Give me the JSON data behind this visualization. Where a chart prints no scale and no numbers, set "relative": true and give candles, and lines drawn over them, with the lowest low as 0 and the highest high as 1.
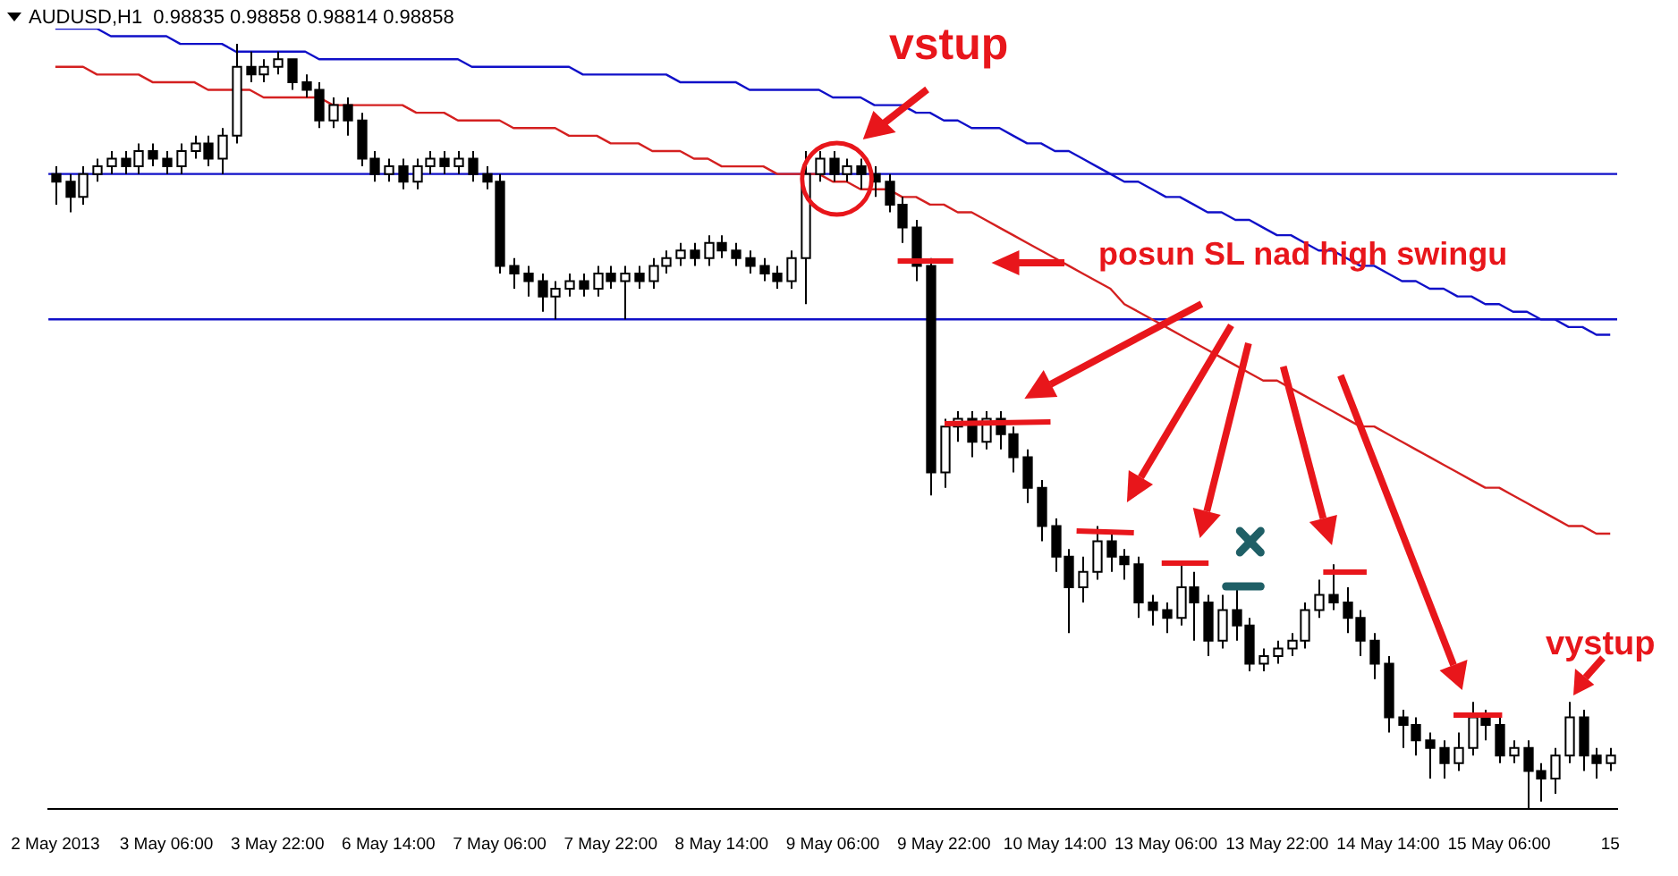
{
  "chart_data": {
    "type": "candlestick",
    "relative": true,
    "tick_labels": "x",
    "title": "AUDUSD,H1  0.98835 0.98858 0.98814 0.98858",
    "categories": [
      "2 May 2013",
      null,
      null,
      null,
      null,
      null,
      null,
      null,
      "3 May 06:00",
      null,
      null,
      null,
      null,
      null,
      null,
      null,
      "3 May 22:00",
      null,
      null,
      null,
      null,
      null,
      null,
      null,
      "6 May 14:00",
      null,
      null,
      null,
      null,
      null,
      null,
      null,
      "7 May 06:00",
      null,
      null,
      null,
      null,
      null,
      null,
      null,
      "7 May 22:00",
      null,
      null,
      null,
      null,
      null,
      null,
      null,
      "8 May 14:00",
      null,
      null,
      null,
      null,
      null,
      null,
      null,
      "9 May 06:00",
      null,
      null,
      null,
      null,
      null,
      null,
      null,
      "9 May 22:00",
      null,
      null,
      null,
      null,
      null,
      null,
      null,
      "10 May 14:00",
      null,
      null,
      null,
      null,
      null,
      null,
      null,
      "13 May 06:00",
      null,
      null,
      null,
      null,
      null,
      null,
      null,
      "13 May 22:00",
      null,
      null,
      null,
      null,
      null,
      null,
      null,
      "14 May 14:00",
      null,
      null,
      null,
      null,
      null,
      null,
      null,
      "15 May 06:00",
      null,
      null,
      null,
      null,
      null,
      null,
      null,
      "15"
    ],
    "ohlc": [
      [
        0.83,
        0.84,
        0.79,
        0.82
      ],
      [
        0.82,
        0.83,
        0.78,
        0.8
      ],
      [
        0.8,
        0.84,
        0.79,
        0.83
      ],
      [
        0.83,
        0.85,
        0.82,
        0.84
      ],
      [
        0.84,
        0.86,
        0.83,
        0.85
      ],
      [
        0.85,
        0.86,
        0.83,
        0.84
      ],
      [
        0.84,
        0.87,
        0.83,
        0.86
      ],
      [
        0.86,
        0.87,
        0.84,
        0.85
      ],
      [
        0.85,
        0.86,
        0.83,
        0.84
      ],
      [
        0.84,
        0.87,
        0.83,
        0.86
      ],
      [
        0.86,
        0.88,
        0.85,
        0.87
      ],
      [
        0.87,
        0.88,
        0.84,
        0.85
      ],
      [
        0.85,
        0.89,
        0.83,
        0.88
      ],
      [
        0.88,
        1.0,
        0.87,
        0.97
      ],
      [
        0.97,
        0.99,
        0.95,
        0.96
      ],
      [
        0.96,
        0.98,
        0.95,
        0.97
      ],
      [
        0.97,
        0.99,
        0.96,
        0.98
      ],
      [
        0.98,
        0.98,
        0.94,
        0.95
      ],
      [
        0.95,
        0.96,
        0.93,
        0.94
      ],
      [
        0.94,
        0.95,
        0.89,
        0.9
      ],
      [
        0.9,
        0.93,
        0.89,
        0.92
      ],
      [
        0.92,
        0.93,
        0.88,
        0.9
      ],
      [
        0.9,
        0.91,
        0.84,
        0.85
      ],
      [
        0.85,
        0.86,
        0.82,
        0.83
      ],
      [
        0.83,
        0.85,
        0.82,
        0.84
      ],
      [
        0.84,
        0.85,
        0.81,
        0.82
      ],
      [
        0.82,
        0.85,
        0.81,
        0.84
      ],
      [
        0.84,
        0.86,
        0.83,
        0.85
      ],
      [
        0.85,
        0.86,
        0.83,
        0.84
      ],
      [
        0.84,
        0.86,
        0.83,
        0.85
      ],
      [
        0.85,
        0.86,
        0.82,
        0.83
      ],
      [
        0.83,
        0.84,
        0.81,
        0.82
      ],
      [
        0.82,
        0.83,
        0.7,
        0.71
      ],
      [
        0.71,
        0.72,
        0.68,
        0.7
      ],
      [
        0.7,
        0.71,
        0.67,
        0.69
      ],
      [
        0.69,
        0.7,
        0.65,
        0.67
      ],
      [
        0.67,
        0.69,
        0.64,
        0.68
      ],
      [
        0.68,
        0.7,
        0.67,
        0.69
      ],
      [
        0.69,
        0.7,
        0.67,
        0.68
      ],
      [
        0.68,
        0.71,
        0.67,
        0.7
      ],
      [
        0.7,
        0.71,
        0.68,
        0.69
      ],
      [
        0.69,
        0.71,
        0.64,
        0.7
      ],
      [
        0.7,
        0.71,
        0.68,
        0.69
      ],
      [
        0.69,
        0.72,
        0.68,
        0.71
      ],
      [
        0.71,
        0.73,
        0.7,
        0.72
      ],
      [
        0.72,
        0.74,
        0.71,
        0.73
      ],
      [
        0.73,
        0.74,
        0.71,
        0.72
      ],
      [
        0.72,
        0.75,
        0.71,
        0.74
      ],
      [
        0.74,
        0.75,
        0.72,
        0.73
      ],
      [
        0.73,
        0.74,
        0.71,
        0.72
      ],
      [
        0.72,
        0.73,
        0.7,
        0.71
      ],
      [
        0.71,
        0.72,
        0.69,
        0.7
      ],
      [
        0.7,
        0.71,
        0.68,
        0.69
      ],
      [
        0.69,
        0.73,
        0.68,
        0.72
      ],
      [
        0.72,
        0.86,
        0.66,
        0.83
      ],
      [
        0.83,
        0.86,
        0.82,
        0.85
      ],
      [
        0.85,
        0.86,
        0.82,
        0.83
      ],
      [
        0.83,
        0.85,
        0.82,
        0.84
      ],
      [
        0.84,
        0.85,
        0.81,
        0.83
      ],
      [
        0.83,
        0.84,
        0.8,
        0.82
      ],
      [
        0.82,
        0.83,
        0.78,
        0.79
      ],
      [
        0.79,
        0.8,
        0.74,
        0.76
      ],
      [
        0.76,
        0.77,
        0.69,
        0.71
      ],
      [
        0.71,
        0.72,
        0.41,
        0.44
      ],
      [
        0.44,
        0.51,
        0.42,
        0.5
      ],
      [
        0.5,
        0.52,
        0.48,
        0.51
      ],
      [
        0.51,
        0.52,
        0.46,
        0.48
      ],
      [
        0.48,
        0.52,
        0.47,
        0.51
      ],
      [
        0.51,
        0.52,
        0.47,
        0.49
      ],
      [
        0.49,
        0.5,
        0.44,
        0.46
      ],
      [
        0.46,
        0.47,
        0.4,
        0.42
      ],
      [
        0.42,
        0.43,
        0.35,
        0.37
      ],
      [
        0.37,
        0.38,
        0.31,
        0.33
      ],
      [
        0.33,
        0.34,
        0.23,
        0.29
      ],
      [
        0.29,
        0.33,
        0.27,
        0.31
      ],
      [
        0.31,
        0.37,
        0.3,
        0.35
      ],
      [
        0.35,
        0.36,
        0.31,
        0.33
      ],
      [
        0.33,
        0.34,
        0.3,
        0.32
      ],
      [
        0.32,
        0.33,
        0.25,
        0.27
      ],
      [
        0.27,
        0.28,
        0.24,
        0.26
      ],
      [
        0.26,
        0.27,
        0.23,
        0.25
      ],
      [
        0.25,
        0.32,
        0.24,
        0.29
      ],
      [
        0.29,
        0.31,
        0.22,
        0.27
      ],
      [
        0.27,
        0.28,
        0.2,
        0.22
      ],
      [
        0.22,
        0.28,
        0.21,
        0.26
      ],
      [
        0.26,
        0.29,
        0.22,
        0.24
      ],
      [
        0.24,
        0.25,
        0.18,
        0.19
      ],
      [
        0.19,
        0.21,
        0.18,
        0.2
      ],
      [
        0.2,
        0.22,
        0.19,
        0.21
      ],
      [
        0.21,
        0.23,
        0.2,
        0.22
      ],
      [
        0.22,
        0.27,
        0.21,
        0.26
      ],
      [
        0.26,
        0.3,
        0.25,
        0.28
      ],
      [
        0.28,
        0.32,
        0.26,
        0.27
      ],
      [
        0.27,
        0.29,
        0.23,
        0.25
      ],
      [
        0.25,
        0.26,
        0.2,
        0.22
      ],
      [
        0.22,
        0.23,
        0.17,
        0.19
      ],
      [
        0.19,
        0.2,
        0.1,
        0.12
      ],
      [
        0.12,
        0.13,
        0.08,
        0.11
      ],
      [
        0.11,
        0.12,
        0.07,
        0.09
      ],
      [
        0.09,
        0.1,
        0.04,
        0.08
      ],
      [
        0.08,
        0.09,
        0.04,
        0.06
      ],
      [
        0.06,
        0.1,
        0.05,
        0.08
      ],
      [
        0.08,
        0.14,
        0.07,
        0.12
      ],
      [
        0.12,
        0.13,
        0.09,
        0.11
      ],
      [
        0.11,
        0.12,
        0.06,
        0.07
      ],
      [
        0.07,
        0.09,
        0.06,
        0.08
      ],
      [
        0.08,
        0.09,
        0.0,
        0.05
      ],
      [
        0.05,
        0.06,
        0.01,
        0.04
      ],
      [
        0.04,
        0.08,
        0.02,
        0.07
      ],
      [
        0.07,
        0.14,
        0.06,
        0.12
      ],
      [
        0.12,
        0.13,
        0.05,
        0.07
      ],
      [
        0.07,
        0.08,
        0.04,
        0.06
      ],
      [
        0.06,
        0.08,
        0.05,
        0.07
      ]
    ],
    "series": [
      {
        "type": "line",
        "color": "#1010c8",
        "values": [
          1.02,
          1.02,
          1.02,
          1.02,
          1.01,
          1.01,
          1.01,
          1.01,
          1.01,
          1.0,
          1.0,
          1.0,
          1.0,
          0.99,
          0.99,
          0.99,
          0.99,
          0.99,
          0.99,
          0.98,
          0.98,
          0.98,
          0.98,
          0.98,
          0.98,
          0.98,
          0.98,
          0.98,
          0.98,
          0.98,
          0.97,
          0.97,
          0.97,
          0.97,
          0.97,
          0.97,
          0.97,
          0.97,
          0.96,
          0.96,
          0.96,
          0.96,
          0.96,
          0.96,
          0.96,
          0.95,
          0.95,
          0.95,
          0.95,
          0.95,
          0.94,
          0.94,
          0.94,
          0.94,
          0.94,
          0.94,
          0.93,
          0.93,
          0.93,
          0.92,
          0.92,
          0.92,
          0.91,
          0.91,
          0.9,
          0.9,
          0.89,
          0.89,
          0.89,
          0.88,
          0.87,
          0.87,
          0.86,
          0.86,
          0.85,
          0.84,
          0.83,
          0.82,
          0.82,
          0.81,
          0.8,
          0.8,
          0.79,
          0.78,
          0.78,
          0.77,
          0.77,
          0.76,
          0.75,
          0.75,
          0.74,
          0.73,
          0.73,
          0.72,
          0.71,
          0.71,
          0.7,
          0.69,
          0.69,
          0.68,
          0.68,
          0.67,
          0.67,
          0.66,
          0.66,
          0.65,
          0.65,
          0.64,
          0.64,
          0.63,
          0.63,
          0.62,
          0.62
        ]
      },
      {
        "type": "line",
        "color": "#d42020",
        "values": [
          0.97,
          0.97,
          0.97,
          0.96,
          0.96,
          0.96,
          0.96,
          0.95,
          0.95,
          0.95,
          0.95,
          0.94,
          0.94,
          0.94,
          0.94,
          0.93,
          0.93,
          0.93,
          0.93,
          0.93,
          0.92,
          0.92,
          0.92,
          0.92,
          0.92,
          0.92,
          0.91,
          0.91,
          0.91,
          0.9,
          0.9,
          0.9,
          0.9,
          0.89,
          0.89,
          0.89,
          0.89,
          0.88,
          0.88,
          0.88,
          0.87,
          0.87,
          0.87,
          0.86,
          0.86,
          0.86,
          0.85,
          0.85,
          0.84,
          0.84,
          0.84,
          0.84,
          0.83,
          0.83,
          0.83,
          0.83,
          0.82,
          0.82,
          0.81,
          0.81,
          0.81,
          0.8,
          0.8,
          0.79,
          0.79,
          0.78,
          0.78,
          0.77,
          0.76,
          0.75,
          0.74,
          0.73,
          0.72,
          0.71,
          0.7,
          0.69,
          0.68,
          0.66,
          0.65,
          0.64,
          0.63,
          0.62,
          0.61,
          0.6,
          0.59,
          0.58,
          0.57,
          0.56,
          0.56,
          0.55,
          0.54,
          0.53,
          0.52,
          0.51,
          0.5,
          0.5,
          0.49,
          0.48,
          0.47,
          0.46,
          0.45,
          0.44,
          0.43,
          0.42,
          0.42,
          0.41,
          0.4,
          0.39,
          0.38,
          0.37,
          0.37,
          0.36,
          0.36
        ]
      }
    ],
    "ref_lines": [
      {
        "axis": "y",
        "value": 0.83,
        "color": "#1010c8"
      },
      {
        "axis": "y",
        "value": 0.64,
        "color": "#1010c8"
      }
    ],
    "annotations": [
      "vstup",
      "posun SL nad high swingu",
      "vystup"
    ]
  }
}
